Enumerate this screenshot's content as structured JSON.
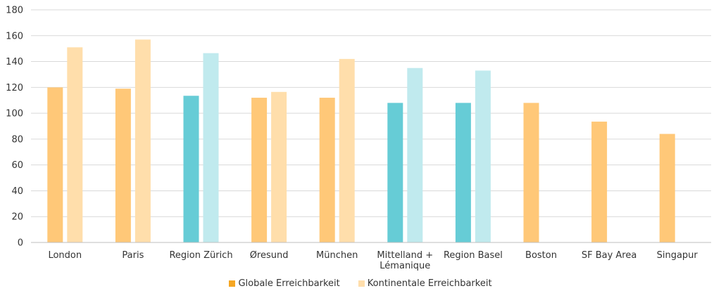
{
  "chart_data": {
    "type": "bar",
    "title": "",
    "xlabel": "",
    "ylabel": "",
    "ylim": [
      0,
      180
    ],
    "yticks": [
      0,
      20,
      40,
      60,
      80,
      100,
      120,
      140,
      160,
      180
    ],
    "grid": true,
    "legend_position": "bottom",
    "categories": [
      [
        "London"
      ],
      [
        "Paris"
      ],
      [
        "Region Zürich"
      ],
      [
        "Øresund"
      ],
      [
        "München"
      ],
      [
        "Mittelland +",
        "Lémanique"
      ],
      [
        "Region Basel"
      ],
      [
        "Boston"
      ],
      [
        "SF Bay Area"
      ],
      [
        "Singapur"
      ]
    ],
    "series": [
      {
        "name": "Globale Erreichbarkeit",
        "values": [
          120,
          119,
          113.5,
          112,
          112,
          108,
          108,
          108,
          93.5,
          84
        ]
      },
      {
        "name": "Kontinentale Erreichbarkeit",
        "values": [
          151,
          157,
          146.5,
          116.5,
          142,
          135,
          133,
          null,
          null,
          null
        ]
      }
    ],
    "colors": {
      "globale": "#ffc878",
      "kontinentale": "#ffdeab",
      "swiss_globale": "#66ccd6",
      "swiss_kontinentale": "#c0eaee",
      "legend_globale": "#f5a623",
      "legend_kontinentale": "#ffdeab",
      "grid": "#d9d9d9",
      "axis": "#bfbfbf"
    },
    "highlighted_categories": [
      2,
      5,
      6
    ]
  }
}
